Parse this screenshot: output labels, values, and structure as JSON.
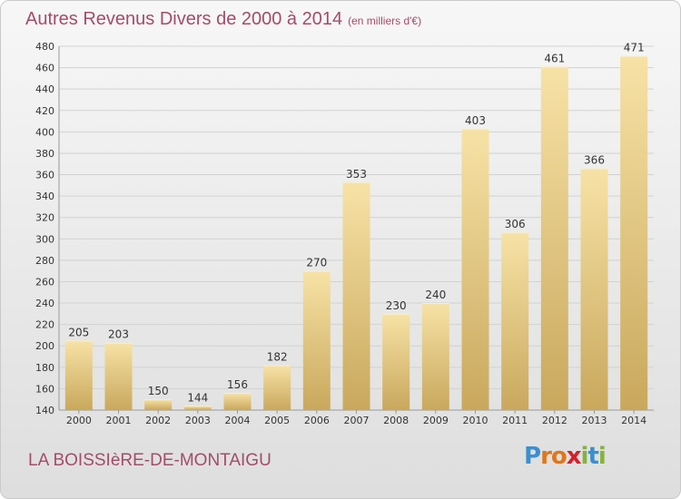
{
  "title": "Autres Revenus Divers de 2000 à 2014",
  "unit": "(en milliers d'€)",
  "place": "LA BOISSIèRE-DE-MONTAIGU",
  "logo": {
    "letters": [
      "P",
      "r",
      "o",
      "x",
      "i",
      "t",
      "i"
    ],
    "colors": [
      "#3b8fd1",
      "#e0761a",
      "#e0761a",
      "#d5202a",
      "#86b23c",
      "#3b8fd1",
      "#86b23c"
    ]
  },
  "colors": {
    "title": "#a34c6a",
    "bar_light": "#f7e2a6",
    "bar_dark": "#c9a85d"
  },
  "chart_data": {
    "type": "bar",
    "title": "Autres Revenus Divers de 2000 à 2014",
    "subtitle": "(en milliers d'€)",
    "categories": [
      "2000",
      "2001",
      "2002",
      "2003",
      "2004",
      "2005",
      "2006",
      "2007",
      "2008",
      "2009",
      "2010",
      "2011",
      "2012",
      "2013",
      "2014"
    ],
    "values": [
      205,
      203,
      150,
      144,
      156,
      182,
      270,
      353,
      230,
      240,
      403,
      306,
      461,
      366,
      471
    ],
    "ylim": [
      140,
      480
    ],
    "yticks": [
      140,
      160,
      180,
      200,
      220,
      240,
      260,
      280,
      300,
      320,
      340,
      360,
      380,
      400,
      420,
      440,
      460,
      480
    ],
    "grid": true,
    "legend": "none"
  }
}
